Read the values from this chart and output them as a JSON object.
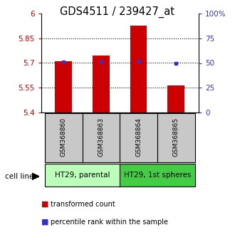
{
  "title": "GDS4511 / 239427_at",
  "categories": [
    "GSM368860",
    "GSM368863",
    "GSM368864",
    "GSM368865"
  ],
  "bar_values": [
    5.713,
    5.745,
    5.93,
    5.565
  ],
  "bar_bottom": 5.4,
  "blue_values": [
    51.0,
    51.0,
    52.0,
    50.0
  ],
  "ylim_left": [
    5.4,
    6.0
  ],
  "ylim_right": [
    0,
    100
  ],
  "yticks_left": [
    5.4,
    5.55,
    5.7,
    5.85,
    6.0
  ],
  "ytick_labels_left": [
    "5.4",
    "5.55",
    "5.7",
    "5.85",
    "6"
  ],
  "yticks_right": [
    0,
    25,
    50,
    75,
    100
  ],
  "ytick_labels_right": [
    "0",
    "25",
    "50",
    "75",
    "100%"
  ],
  "hlines": [
    5.55,
    5.7,
    5.85
  ],
  "bar_color": "#cc0000",
  "blue_color": "#3333cc",
  "bar_width": 0.45,
  "groups": [
    {
      "label": "HT29, parental",
      "indices": [
        0,
        1
      ],
      "color": "#bbffbb"
    },
    {
      "label": "HT29, 1st spheres",
      "indices": [
        2,
        3
      ],
      "color": "#44cc44"
    }
  ],
  "cell_line_label": "cell line",
  "legend_items": [
    {
      "label": "transformed count",
      "color": "#cc0000"
    },
    {
      "label": "percentile rank within the sample",
      "color": "#3333cc"
    }
  ],
  "sample_box_color": "#c8c8c8",
  "title_fontsize": 10.5
}
